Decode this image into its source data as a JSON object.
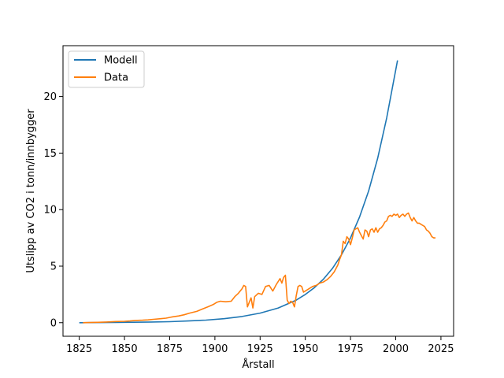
{
  "chart_data": {
    "type": "line",
    "title": "",
    "xlabel": "Årstall",
    "ylabel": "Utslipp av CO2 i tonn/innbygger",
    "xlim": [
      1816,
      2032
    ],
    "ylim": [
      -1.2,
      24.5
    ],
    "xticks": [
      1825,
      1850,
      1875,
      1900,
      1925,
      1950,
      1975,
      2000,
      2025
    ],
    "yticks": [
      0,
      5,
      10,
      15,
      20
    ],
    "xtick_labels": [
      "1825",
      "1850",
      "1875",
      "1900",
      "1925",
      "1950",
      "1975",
      "2000",
      "2025"
    ],
    "ytick_labels": [
      "0",
      "5",
      "10",
      "15",
      "20"
    ],
    "grid": false,
    "legend": "top-left",
    "series": [
      {
        "name": "Modell",
        "color": "#1f77b4",
        "x": [
          1825,
          1835,
          1845,
          1855,
          1865,
          1875,
          1885,
          1895,
          1905,
          1915,
          1925,
          1935,
          1945,
          1950,
          1955,
          1960,
          1965,
          1970,
          1975,
          1980,
          1985,
          1990,
          1995,
          2001
        ],
        "y": [
          0.0,
          0.01,
          0.02,
          0.04,
          0.06,
          0.09,
          0.15,
          0.23,
          0.35,
          0.55,
          0.85,
          1.3,
          2.0,
          2.5,
          3.1,
          3.85,
          4.8,
          6.0,
          7.5,
          9.35,
          11.65,
          14.55,
          18.1,
          23.2
        ]
      },
      {
        "name": "Data",
        "color": "#ff7f0e",
        "x": [
          1827,
          1830,
          1835,
          1840,
          1845,
          1850,
          1853,
          1856,
          1860,
          1863,
          1866,
          1870,
          1873,
          1876,
          1880,
          1883,
          1886,
          1890,
          1893,
          1896,
          1899,
          1901,
          1903,
          1906,
          1909,
          1911,
          1913,
          1915,
          1916,
          1917,
          1918,
          1919,
          1920,
          1921,
          1922,
          1924,
          1926,
          1928,
          1930,
          1932,
          1934,
          1936,
          1937,
          1938,
          1939,
          1940,
          1941,
          1942,
          1943,
          1944,
          1945,
          1946,
          1947,
          1948,
          1949,
          1950,
          1952,
          1954,
          1956,
          1958,
          1960,
          1962,
          1964,
          1966,
          1968,
          1969,
          1970,
          1971,
          1972,
          1973,
          1974,
          1975,
          1976,
          1977,
          1978,
          1979,
          1980,
          1981,
          1982,
          1983,
          1984,
          1985,
          1986,
          1987,
          1988,
          1989,
          1990,
          1991,
          1992,
          1993,
          1994,
          1995,
          1996,
          1997,
          1998,
          1999,
          2000,
          2001,
          2002,
          2003,
          2004,
          2005,
          2006,
          2007,
          2008,
          2009,
          2010,
          2011,
          2012,
          2013,
          2014,
          2015,
          2016,
          2017,
          2018,
          2019,
          2020,
          2021,
          2022
        ],
        "y": [
          0.0,
          0.01,
          0.03,
          0.06,
          0.1,
          0.12,
          0.15,
          0.2,
          0.22,
          0.25,
          0.3,
          0.35,
          0.4,
          0.5,
          0.6,
          0.7,
          0.85,
          1.0,
          1.2,
          1.4,
          1.6,
          1.8,
          1.9,
          1.85,
          1.9,
          2.3,
          2.6,
          3.0,
          3.3,
          3.2,
          1.4,
          1.8,
          2.2,
          1.3,
          2.3,
          2.6,
          2.5,
          3.2,
          3.3,
          2.8,
          3.4,
          3.9,
          3.5,
          4.0,
          4.2,
          2.0,
          1.7,
          1.9,
          1.8,
          1.4,
          2.4,
          3.2,
          3.3,
          3.2,
          2.7,
          2.8,
          3.0,
          3.2,
          3.3,
          3.5,
          3.6,
          3.8,
          4.1,
          4.5,
          5.1,
          5.6,
          6.0,
          7.2,
          7.0,
          7.6,
          7.4,
          6.9,
          7.5,
          8.2,
          8.3,
          8.4,
          8.0,
          7.7,
          7.4,
          8.2,
          8.1,
          7.6,
          8.2,
          8.3,
          8.0,
          8.4,
          8.0,
          8.3,
          8.4,
          8.6,
          8.9,
          9.0,
          9.4,
          9.5,
          9.4,
          9.6,
          9.5,
          9.6,
          9.3,
          9.5,
          9.6,
          9.4,
          9.6,
          9.7,
          9.3,
          9.0,
          9.3,
          9.0,
          8.8,
          8.8,
          8.7,
          8.6,
          8.5,
          8.2,
          8.1,
          7.9,
          7.6,
          7.5,
          7.5
        ]
      }
    ]
  }
}
